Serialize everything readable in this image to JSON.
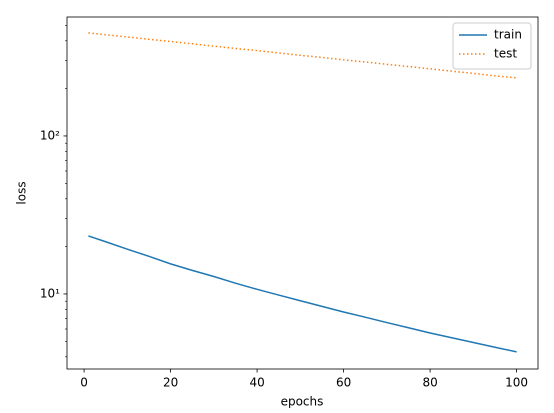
{
  "chart_data": {
    "type": "line",
    "x_label": "epochs",
    "y_label": "loss",
    "x": [
      1,
      5,
      10,
      15,
      20,
      25,
      30,
      35,
      40,
      45,
      50,
      55,
      60,
      65,
      70,
      75,
      80,
      85,
      90,
      95,
      100
    ],
    "series": [
      {
        "name": "train",
        "color": "#1f77b4",
        "style": "solid",
        "values": [
          23.3,
          21.4,
          19.2,
          17.3,
          15.5,
          14.1,
          12.9,
          11.7,
          10.7,
          9.84,
          9.06,
          8.34,
          7.69,
          7.13,
          6.59,
          6.11,
          5.66,
          5.28,
          4.93,
          4.6,
          4.3
        ]
      },
      {
        "name": "test",
        "color": "#ff7f0e",
        "style": "dotted",
        "values": [
          449,
          437,
          423,
          409,
          396,
          383,
          370,
          358,
          347,
          335,
          324,
          314,
          303,
          294,
          284,
          275,
          266,
          257,
          249,
          240,
          233
        ]
      }
    ],
    "xlim": [
      -3.95,
      104.95
    ],
    "xticks": [
      0,
      20,
      40,
      60,
      80,
      100
    ],
    "ylim": [
      3.35,
      566
    ],
    "ylog": true,
    "yticks": [
      {
        "value": 10,
        "label": "10¹"
      },
      {
        "value": 100,
        "label": "10²"
      }
    ],
    "yminorticks": [
      4,
      5,
      6,
      7,
      8,
      9,
      20,
      30,
      40,
      50,
      60,
      70,
      80,
      90,
      200,
      300,
      400,
      500
    ],
    "legend": "upper right"
  }
}
